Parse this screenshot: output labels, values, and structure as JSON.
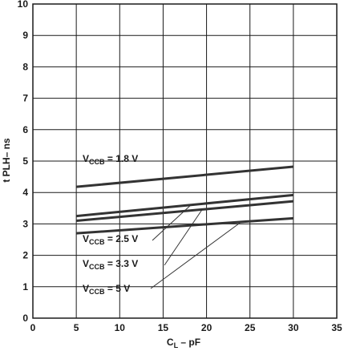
{
  "chart_data": {
    "type": "line",
    "title": "",
    "xlabel_main": "C",
    "xlabel_sub": "L",
    "xlabel_tail": " – pF",
    "ylabel": "t PLH– ns",
    "xlim": [
      0,
      35
    ],
    "ylim": [
      0,
      10
    ],
    "x_ticks": [
      "0",
      "5",
      "10",
      "15",
      "20",
      "25",
      "30",
      "35"
    ],
    "y_ticks": [
      "0",
      "1",
      "2",
      "3",
      "4",
      "5",
      "6",
      "7",
      "8",
      "9",
      "10"
    ],
    "grid": true,
    "series": [
      {
        "name_main": "V",
        "name_sub": "CCB",
        "name_tail": " = 1.8 V",
        "x": [
          5,
          30
        ],
        "y": [
          4.18,
          4.82
        ]
      },
      {
        "name_main": "V",
        "name_sub": "CCB",
        "name_tail": " = 2.5 V",
        "x": [
          5,
          30
        ],
        "y": [
          3.25,
          3.92
        ]
      },
      {
        "name_main": "V",
        "name_sub": "CCB",
        "name_tail": " = 3.3 V",
        "x": [
          5,
          30
        ],
        "y": [
          3.1,
          3.72
        ]
      },
      {
        "name_main": "V",
        "name_sub": "CCB",
        "name_tail": " = 5 V",
        "x": [
          5,
          30
        ],
        "y": [
          2.7,
          3.18
        ]
      }
    ],
    "colors": {
      "line": "#333333",
      "grid": "#1a1a1a",
      "text": "#1a1a1a"
    }
  }
}
